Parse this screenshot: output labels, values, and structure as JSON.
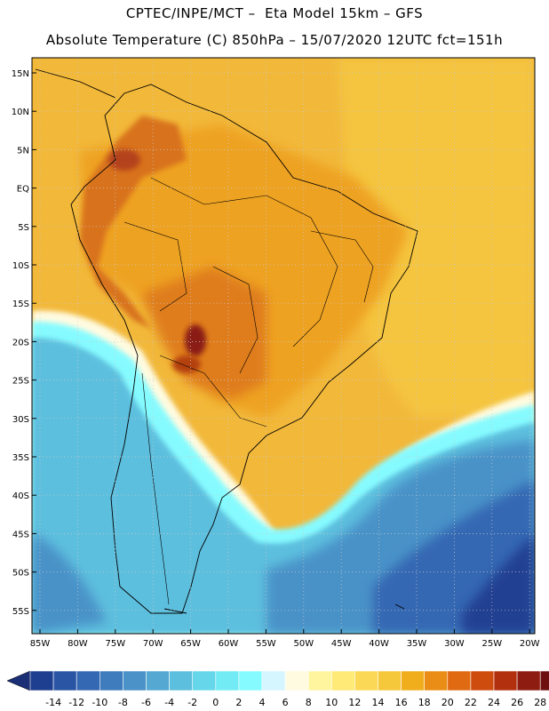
{
  "title": {
    "line1": "CPTEC/INPE/MCT –  Eta Model 15km – GFS",
    "line2": "Absolute Temperature (C) 850hPa – 15/07/2020 12UTC fct=151h"
  },
  "latitude_labels": [
    "15N",
    "10N",
    "5N",
    "EQ",
    "5S",
    "10S",
    "15S",
    "20S",
    "25S",
    "30S",
    "35S",
    "40S",
    "45S",
    "50S",
    "55S"
  ],
  "longitude_labels": [
    "85W",
    "80W",
    "75W",
    "70W",
    "65W",
    "60W",
    "55W",
    "50W",
    "45W",
    "40W",
    "35W",
    "30W",
    "25W",
    "20W"
  ],
  "colorbar": {
    "ticks": [
      "-14",
      "-12",
      "-10",
      "-8",
      "-6",
      "-4",
      "-2",
      "0",
      "2",
      "4",
      "6",
      "8",
      "10",
      "12",
      "14",
      "16",
      "18",
      "20",
      "22",
      "24",
      "26",
      "28"
    ],
    "colors": [
      "#1e3f8f",
      "#2a55a5",
      "#3568b3",
      "#3f7cbd",
      "#4a92c8",
      "#54a8d2",
      "#5dbfde",
      "#66d7ea",
      "#72ebf4",
      "#86fbff",
      "#d6f6ff",
      "#fffbe1",
      "#fff59f",
      "#ffe977",
      "#fbd956",
      "#f5c73a",
      "#f0ae1d",
      "#ea8d17",
      "#e06a12",
      "#cf4c0f",
      "#b2300e",
      "#8f1c10",
      "#6e1010"
    ],
    "under_color": "#1a2e75",
    "over_color": "#7a0c14"
  },
  "palette": {
    "ocean_default": "#f0b838",
    "land_warm": "#eea424",
    "andes_hot": "#d9761a",
    "very_hot": "#9c2c12",
    "cold_deep": "#223f92",
    "cold_mid": "#3e7cbd",
    "cool": "#5dbfde",
    "mild": "#86fbff",
    "pale": "#d6f6ff",
    "cream": "#fffbe1"
  }
}
